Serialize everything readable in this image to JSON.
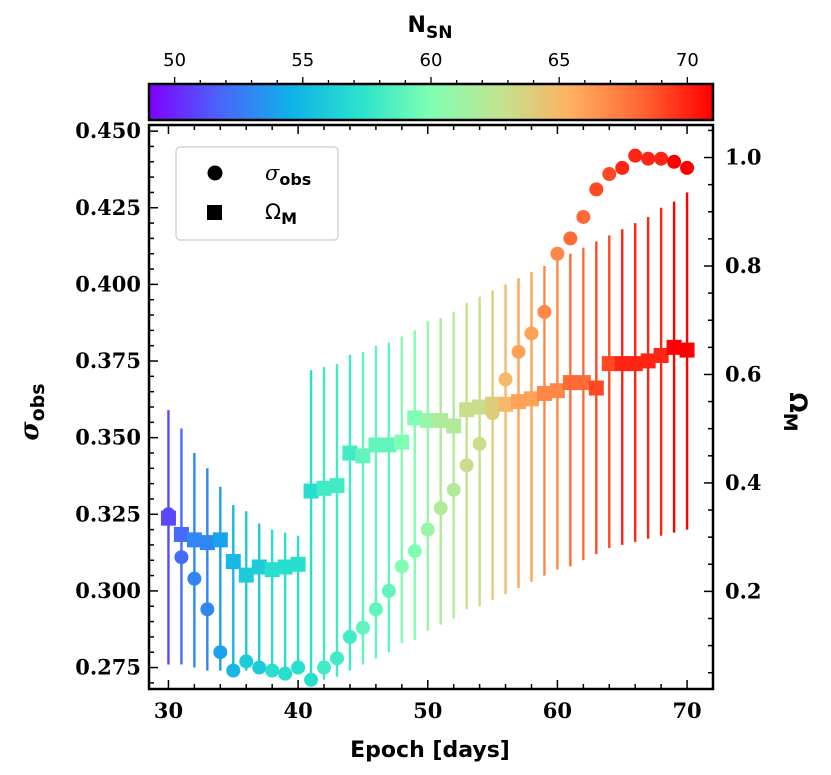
{
  "chart_data": {
    "type": "scatter",
    "x": [
      30,
      31,
      32,
      33,
      34,
      35,
      36,
      37,
      38,
      39,
      40,
      41,
      42,
      43,
      44,
      45,
      46,
      47,
      48,
      49,
      50,
      51,
      52,
      53,
      54,
      55,
      56,
      57,
      58,
      59,
      60,
      61,
      62,
      63,
      64,
      65,
      66,
      67,
      68,
      69,
      70
    ],
    "series": [
      {
        "name": "sigma_obs",
        "axis": "left",
        "marker": "circle",
        "values": [
          0.325,
          0.311,
          0.304,
          0.294,
          0.28,
          0.274,
          0.277,
          0.275,
          0.274,
          0.273,
          0.275,
          0.271,
          0.275,
          0.278,
          0.285,
          0.288,
          0.294,
          0.3,
          0.308,
          0.313,
          0.32,
          0.327,
          0.333,
          0.341,
          0.348,
          0.358,
          0.369,
          0.378,
          0.384,
          0.391,
          0.41,
          0.415,
          0.422,
          0.431,
          0.436,
          0.438,
          0.442,
          0.441,
          0.441,
          0.44,
          0.438
        ],
        "err_low": [
          0.276,
          0.276,
          0.275,
          0.274,
          0.274,
          0.274,
          0.274,
          0.274,
          0.273,
          0.273,
          0.273,
          0.271,
          0.271,
          0.272,
          0.274,
          0.276,
          0.278,
          0.28,
          0.283,
          0.284,
          0.287,
          0.289,
          0.291,
          0.294,
          0.295,
          0.297,
          0.299,
          0.301,
          0.303,
          0.305,
          0.307,
          0.308,
          0.31,
          0.312,
          0.314,
          0.315,
          0.316,
          0.317,
          0.318,
          0.319,
          0.32
        ],
        "err_high": [
          0.359,
          0.353,
          0.345,
          0.34,
          0.334,
          0.328,
          0.326,
          0.322,
          0.32,
          0.319,
          0.318,
          0.372,
          0.373,
          0.374,
          0.377,
          0.378,
          0.38,
          0.381,
          0.383,
          0.385,
          0.388,
          0.389,
          0.391,
          0.394,
          0.396,
          0.398,
          0.4,
          0.402,
          0.404,
          0.406,
          0.408,
          0.41,
          0.412,
          0.414,
          0.416,
          0.418,
          0.42,
          0.422,
          0.425,
          0.427,
          0.43
        ]
      },
      {
        "name": "Omega_M",
        "axis": "right",
        "marker": "square",
        "values": [
          0.335,
          0.305,
          0.295,
          0.29,
          0.295,
          0.255,
          0.23,
          0.245,
          0.24,
          0.245,
          0.25,
          0.385,
          0.39,
          0.395,
          0.455,
          0.45,
          0.47,
          0.47,
          0.475,
          0.52,
          0.515,
          0.515,
          0.505,
          0.535,
          0.54,
          0.545,
          0.545,
          0.55,
          0.555,
          0.565,
          0.57,
          0.585,
          0.585,
          0.575,
          0.62,
          0.62,
          0.62,
          0.625,
          0.635,
          0.65,
          0.645
        ]
      }
    ],
    "n_sn": [
      51,
      52,
      53,
      53,
      54,
      55,
      56,
      56,
      57,
      57,
      57,
      57,
      58,
      58,
      58,
      59,
      59,
      59,
      60,
      60,
      61,
      62,
      62,
      63,
      63,
      64,
      65,
      66,
      66,
      67,
      67,
      68,
      68,
      69,
      69,
      70,
      70,
      70,
      70,
      71,
      71
    ],
    "xlabel": "Epoch [days]",
    "ylabel_left": "σ",
    "ylabel_left_sub": "obs",
    "ylabel_right": "Ω",
    "ylabel_right_sub": "M",
    "xlim": [
      28.5,
      72
    ],
    "ylim_left": [
      0.268,
      0.452
    ],
    "ylim_right": [
      0.02,
      1.06
    ],
    "xticks": [
      "30",
      "40",
      "50",
      "60",
      "70"
    ],
    "yticks_left": [
      "0.275",
      "0.300",
      "0.325",
      "0.350",
      "0.375",
      "0.400",
      "0.425",
      "0.450"
    ],
    "yticks_right": [
      "0.2",
      "0.4",
      "0.6",
      "0.8",
      "1.0"
    ],
    "legend": {
      "placement": "top-left",
      "entries": [
        {
          "label": "σ",
          "sub": "obs",
          "marker": "circle"
        },
        {
          "label": "Ω",
          "sub": "M",
          "marker": "square"
        }
      ]
    },
    "colorbar": {
      "title": "N",
      "title_sub": "SN",
      "range": [
        49,
        71
      ],
      "ticks": [
        "50",
        "55",
        "60",
        "65",
        "70"
      ],
      "colormap": "rainbow"
    }
  }
}
